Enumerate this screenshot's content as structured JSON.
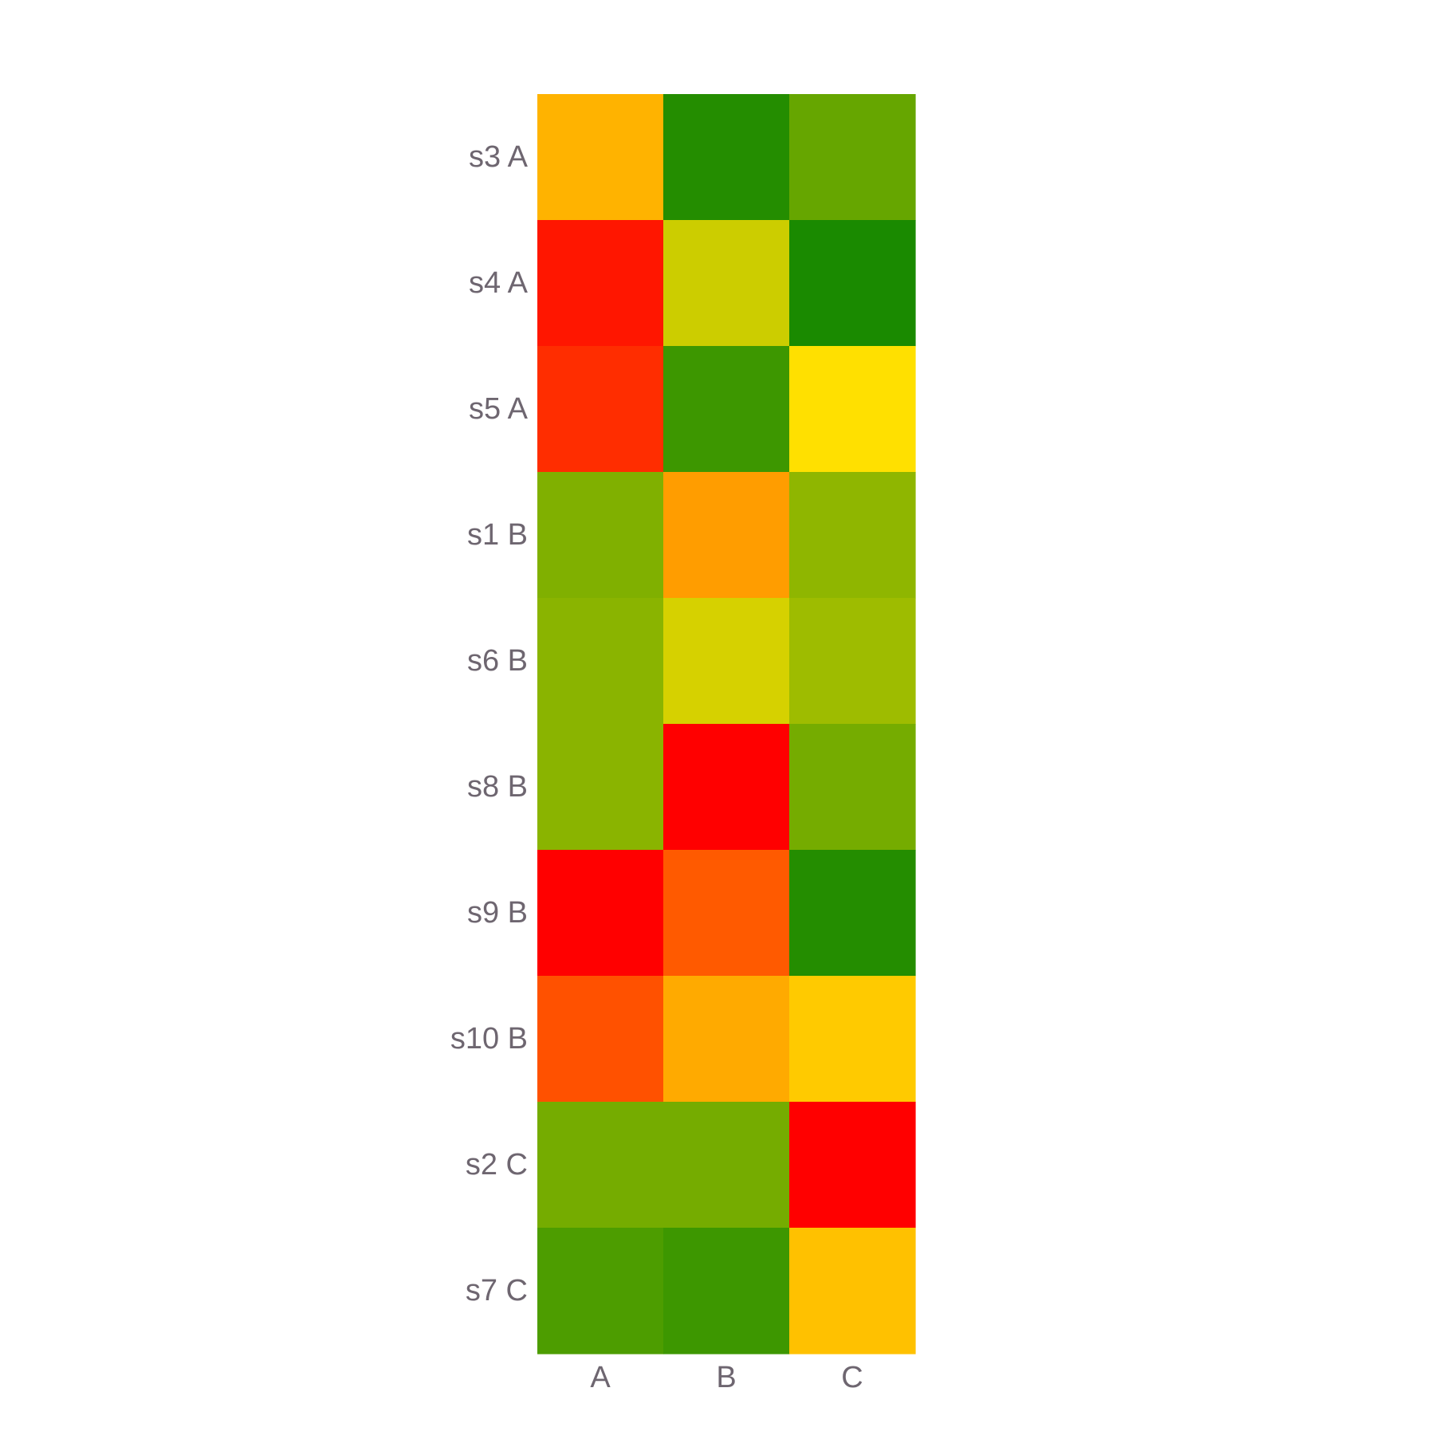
{
  "chart_data": {
    "type": "heatmap",
    "title": "",
    "xlabel": "",
    "ylabel": "",
    "columns": [
      "A",
      "B",
      "C"
    ],
    "rows": [
      "s3 A",
      "s4 A",
      "s5 A",
      "s1 B",
      "s6 B",
      "s8 B",
      "s9 B",
      "s10 B",
      "s2 C",
      "s7 C"
    ],
    "cells": [
      [
        0.4,
        0.93,
        0.8
      ],
      [
        0.05,
        0.6,
        0.95
      ],
      [
        0.1,
        0.88,
        0.5
      ],
      [
        0.75,
        0.35,
        0.72
      ],
      [
        0.73,
        0.58,
        0.69
      ],
      [
        0.73,
        0.0,
        0.77
      ],
      [
        0.0,
        0.2,
        0.93
      ],
      [
        0.18,
        0.38,
        0.45
      ],
      [
        0.77,
        0.77,
        0.0
      ],
      [
        0.85,
        0.88,
        0.43
      ]
    ],
    "colormap": {
      "name": "red-yellow-green",
      "low": "#ff0000",
      "mid": "#ffe000",
      "high": "#008000"
    },
    "grid": false,
    "legend": "none"
  }
}
